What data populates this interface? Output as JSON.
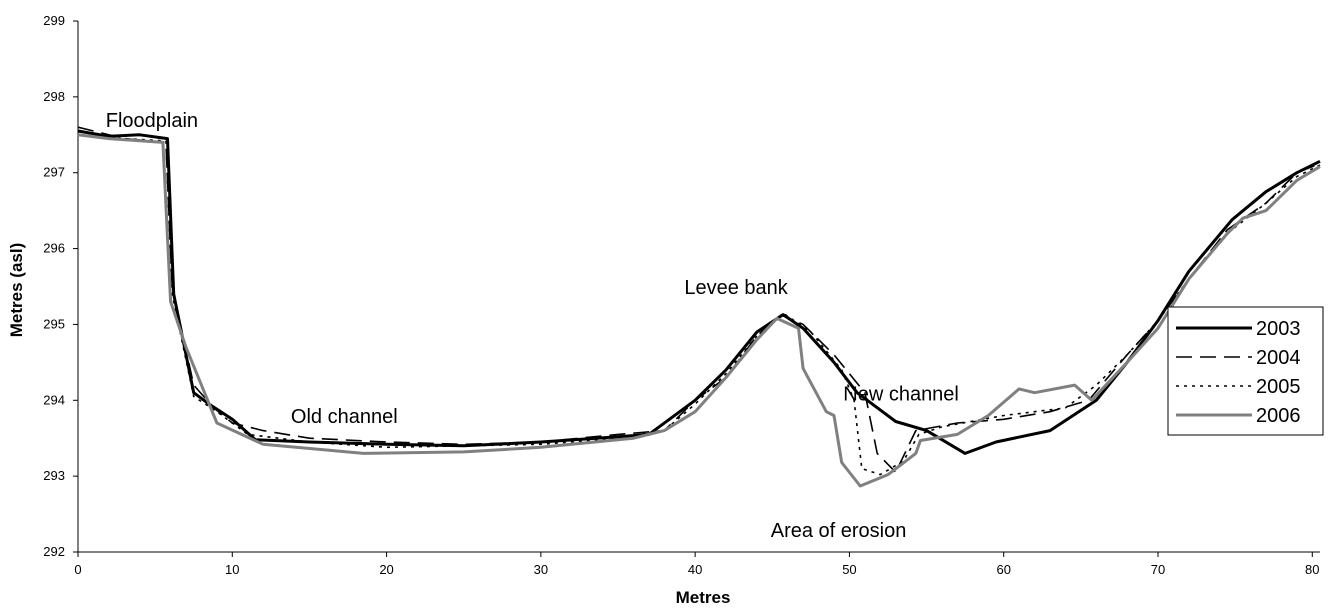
{
  "chart_data": {
    "type": "line",
    "xlabel": "Metres",
    "ylabel": "Metres (asl)",
    "xlim": [
      0,
      80.5
    ],
    "ylim": [
      292,
      299
    ],
    "x_ticks": [
      "0",
      "10",
      "20",
      "30",
      "40",
      "50",
      "60",
      "70",
      "80"
    ],
    "y_ticks": [
      "292",
      "293",
      "294",
      "295",
      "296",
      "297",
      "298",
      "299"
    ],
    "grid": false,
    "legend_position": "right",
    "annotations": [
      {
        "text": "Floodplain",
        "x": 1.8,
        "y": 297.6
      },
      {
        "text": "Old channel",
        "x": 13.8,
        "y": 293.7
      },
      {
        "text": "Levee bank",
        "x": 39.3,
        "y": 295.4
      },
      {
        "text": "New channel",
        "x": 49.6,
        "y": 294.0
      },
      {
        "text": "Area of erosion",
        "x": 44.9,
        "y": 292.2
      }
    ],
    "series": [
      {
        "name": "2003",
        "color": "#000000",
        "style": "solid",
        "points": [
          [
            0,
            297.55
          ],
          [
            2,
            297.48
          ],
          [
            4,
            297.5
          ],
          [
            5.8,
            297.45
          ],
          [
            6.2,
            295.4
          ],
          [
            7.5,
            294.1
          ],
          [
            8.5,
            293.95
          ],
          [
            10,
            293.75
          ],
          [
            11.5,
            293.48
          ],
          [
            15,
            293.45
          ],
          [
            20,
            293.42
          ],
          [
            25,
            293.4
          ],
          [
            30,
            293.45
          ],
          [
            35,
            293.52
          ],
          [
            37,
            293.55
          ],
          [
            40,
            294
          ],
          [
            42,
            294.4
          ],
          [
            44,
            294.9
          ],
          [
            45.7,
            295.13
          ],
          [
            47,
            294.95
          ],
          [
            49,
            294.5
          ],
          [
            50.5,
            294.1
          ],
          [
            53,
            293.72
          ],
          [
            55,
            293.6
          ],
          [
            57.5,
            293.3
          ],
          [
            59.5,
            293.45
          ],
          [
            63,
            293.6
          ],
          [
            66,
            294
          ],
          [
            68,
            294.5
          ],
          [
            70,
            295.05
          ],
          [
            72,
            295.7
          ],
          [
            74.8,
            296.38
          ],
          [
            77,
            296.75
          ],
          [
            79,
            297
          ],
          [
            80.5,
            297.15
          ]
        ]
      },
      {
        "name": "2004",
        "color": "#000000",
        "style": "dashed",
        "points": [
          [
            0,
            297.6
          ],
          [
            3,
            297.45
          ],
          [
            5.7,
            297.4
          ],
          [
            6.1,
            295.5
          ],
          [
            7.5,
            294.2
          ],
          [
            8.8,
            293.9
          ],
          [
            10,
            293.7
          ],
          [
            12,
            293.6
          ],
          [
            15,
            293.5
          ],
          [
            20,
            293.45
          ],
          [
            25,
            293.42
          ],
          [
            30,
            293.45
          ],
          [
            35,
            293.55
          ],
          [
            38,
            293.6
          ],
          [
            40,
            294
          ],
          [
            42,
            294.3
          ],
          [
            44,
            294.85
          ],
          [
            45.6,
            295.12
          ],
          [
            47,
            295
          ],
          [
            49,
            294.6
          ],
          [
            51,
            294.1
          ],
          [
            51.8,
            293.3
          ],
          [
            53,
            293.05
          ],
          [
            54.3,
            293.6
          ],
          [
            57,
            293.7
          ],
          [
            60,
            293.75
          ],
          [
            63,
            293.85
          ],
          [
            65.5,
            294
          ],
          [
            68,
            294.6
          ],
          [
            70,
            295.05
          ],
          [
            72,
            295.6
          ],
          [
            74.5,
            296.25
          ],
          [
            77,
            296.6
          ],
          [
            79,
            297
          ],
          [
            80.5,
            297.12
          ]
        ]
      },
      {
        "name": "2005",
        "color": "#000000",
        "style": "dotted",
        "points": [
          [
            0,
            297.5
          ],
          [
            3,
            297.45
          ],
          [
            5.7,
            297.42
          ],
          [
            6.1,
            295.4
          ],
          [
            7.5,
            294.05
          ],
          [
            9,
            293.85
          ],
          [
            11,
            293.55
          ],
          [
            15,
            293.45
          ],
          [
            20,
            293.38
          ],
          [
            25,
            293.4
          ],
          [
            30,
            293.42
          ],
          [
            35,
            293.5
          ],
          [
            38,
            293.6
          ],
          [
            40,
            293.95
          ],
          [
            42,
            294.35
          ],
          [
            44,
            294.85
          ],
          [
            45.7,
            295.15
          ],
          [
            47.5,
            294.9
          ],
          [
            49.5,
            294.4
          ],
          [
            50.3,
            294
          ],
          [
            50.8,
            293.1
          ],
          [
            52,
            293.02
          ],
          [
            53.5,
            293.2
          ],
          [
            54.5,
            293.55
          ],
          [
            56,
            293.65
          ],
          [
            60,
            293.8
          ],
          [
            62,
            293.85
          ],
          [
            64,
            293.9
          ],
          [
            66,
            294.2
          ],
          [
            68,
            294.6
          ],
          [
            70,
            295.05
          ],
          [
            72,
            295.6
          ],
          [
            74.5,
            296.2
          ],
          [
            77,
            296.6
          ],
          [
            79,
            296.95
          ],
          [
            80.5,
            297.1
          ]
        ]
      },
      {
        "name": "2006",
        "color": "#808080",
        "style": "solid",
        "points": [
          [
            0,
            297.5
          ],
          [
            2,
            297.45
          ],
          [
            5.5,
            297.4
          ],
          [
            6,
            295.3
          ],
          [
            7,
            294.7
          ],
          [
            8.3,
            294.05
          ],
          [
            9,
            293.7
          ],
          [
            12,
            293.42
          ],
          [
            18.5,
            293.3
          ],
          [
            25,
            293.32
          ],
          [
            30,
            293.38
          ],
          [
            36,
            293.5
          ],
          [
            38,
            293.6
          ],
          [
            40,
            293.85
          ],
          [
            42,
            294.3
          ],
          [
            44,
            294.8
          ],
          [
            45.3,
            295.08
          ],
          [
            46.7,
            294.95
          ],
          [
            47,
            294.42
          ],
          [
            48.5,
            293.85
          ],
          [
            49,
            293.8
          ],
          [
            49.5,
            293.18
          ],
          [
            50.7,
            292.87
          ],
          [
            52.5,
            293.02
          ],
          [
            54.3,
            293.3
          ],
          [
            54.6,
            293.47
          ],
          [
            57,
            293.55
          ],
          [
            59,
            293.8
          ],
          [
            61,
            294.15
          ],
          [
            62,
            294.1
          ],
          [
            64.6,
            294.2
          ],
          [
            65.7,
            294
          ],
          [
            68,
            294.5
          ],
          [
            70,
            294.95
          ],
          [
            72,
            295.6
          ],
          [
            74.5,
            296.2
          ],
          [
            75.5,
            296.4
          ],
          [
            77,
            296.5
          ],
          [
            79,
            296.9
          ],
          [
            80.5,
            297.08
          ]
        ]
      }
    ]
  }
}
